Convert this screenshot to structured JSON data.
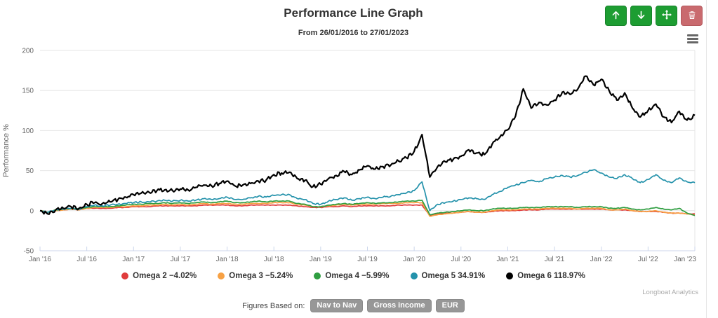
{
  "header": {
    "title": "Performance Line Graph",
    "subtitle": "From 26/01/2016 to 27/01/2023",
    "toolbar": [
      {
        "name": "move-up",
        "icon": "arrow-up-icon",
        "style": "green"
      },
      {
        "name": "move-down",
        "icon": "arrow-down-icon",
        "style": "green"
      },
      {
        "name": "drag-move",
        "icon": "move-icon",
        "style": "green"
      },
      {
        "name": "delete",
        "icon": "trash-icon",
        "style": "red"
      }
    ],
    "menu_icon": "hamburger-icon"
  },
  "chart_data": {
    "type": "line",
    "title": "Performance Line Graph",
    "subtitle": "From 26/01/2016 to 27/01/2023",
    "xlabel": "",
    "ylabel": "Performance %",
    "ylim": [
      -50,
      200
    ],
    "yticks": [
      -50,
      0,
      50,
      100,
      150,
      200
    ],
    "x_unit": "months since Jan 2016 (0..84)",
    "xtick_months": [
      0,
      6,
      12,
      18,
      24,
      30,
      36,
      42,
      48,
      54,
      60,
      66,
      72,
      78,
      84
    ],
    "xtick_labels": [
      "Jan '16",
      "Jul '16",
      "Jan '17",
      "Jul '17",
      "Jan '18",
      "Jul '18",
      "Jan '19",
      "Jul '19",
      "Jan '20",
      "Jul '20",
      "Jan '21",
      "Jul '21",
      "Jan '22",
      "Jul '22",
      "Jan '23"
    ],
    "grid": "horizontal",
    "legend_position": "bottom",
    "series": [
      {
        "name": "Omega 2",
        "final_value": -4.02,
        "legend_label": "Omega 2 −4.02%",
        "color": "#e03c3c",
        "values": [
          0,
          -2,
          0,
          1,
          2,
          1,
          3,
          3,
          3,
          3,
          4,
          4,
          5,
          5,
          5,
          6,
          6,
          6,
          6,
          6,
          6,
          7,
          7,
          7,
          7,
          6,
          6,
          7,
          7,
          7,
          7,
          7,
          7,
          6,
          5,
          4,
          4,
          5,
          5,
          6,
          5,
          6,
          6,
          6,
          6,
          6,
          7,
          7,
          7,
          7,
          -6,
          -4,
          -3,
          -3,
          -2,
          -1,
          -2,
          -2,
          -1,
          0,
          0,
          0,
          1,
          1,
          1,
          2,
          2,
          2,
          2,
          2,
          2,
          2,
          2,
          1,
          1,
          1,
          0,
          -1,
          -1,
          -1,
          -2,
          -3,
          -3,
          -4,
          -4.02
        ]
      },
      {
        "name": "Omega 3",
        "final_value": -5.24,
        "legend_label": "Omega 3 −5.24%",
        "color": "#f7a144",
        "values": [
          0,
          -2,
          0,
          1,
          2,
          1,
          3,
          4,
          4,
          4,
          5,
          5,
          6,
          6,
          7,
          7,
          8,
          7,
          8,
          7,
          8,
          9,
          8,
          9,
          9,
          8,
          8,
          9,
          9,
          9,
          10,
          10,
          10,
          8,
          7,
          5,
          5,
          6,
          7,
          8,
          7,
          8,
          8,
          8,
          9,
          9,
          9,
          10,
          10,
          10,
          -7,
          -5,
          -4,
          -3,
          -2,
          -1,
          -2,
          -2,
          0,
          1,
          1,
          1,
          2,
          2,
          2,
          3,
          3,
          3,
          3,
          2,
          3,
          3,
          3,
          1,
          1,
          2,
          0,
          -1,
          -1,
          0,
          -2,
          -3,
          -3,
          -4,
          -5.24
        ]
      },
      {
        "name": "Omega 4",
        "final_value": -5.99,
        "legend_label": "Omega 4 −5.99%",
        "color": "#2f9e41",
        "values": [
          0,
          -2,
          1,
          2,
          3,
          2,
          4,
          5,
          5,
          5,
          6,
          7,
          8,
          8,
          9,
          9,
          10,
          9,
          10,
          9,
          10,
          11,
          10,
          11,
          12,
          10,
          10,
          11,
          12,
          11,
          12,
          12,
          12,
          9,
          8,
          5,
          5,
          7,
          8,
          9,
          8,
          9,
          10,
          9,
          10,
          10,
          11,
          12,
          12,
          13,
          -5,
          -3,
          -2,
          -1,
          0,
          1,
          0,
          0,
          2,
          3,
          3,
          3,
          4,
          4,
          4,
          5,
          5,
          5,
          5,
          4,
          5,
          5,
          5,
          3,
          3,
          4,
          2,
          1,
          2,
          4,
          2,
          1,
          3,
          -3,
          -5.99
        ]
      },
      {
        "name": "Omega 5",
        "final_value": 34.91,
        "legend_label": "Omega 5 34.91%",
        "color": "#2492ab",
        "values": [
          0,
          -2,
          1,
          2,
          3,
          2,
          5,
          7,
          6,
          7,
          8,
          9,
          10,
          11,
          11,
          12,
          13,
          12,
          13,
          12,
          13,
          15,
          14,
          15,
          17,
          14,
          14,
          16,
          18,
          17,
          19,
          20,
          20,
          15,
          14,
          9,
          8,
          12,
          14,
          16,
          13,
          15,
          17,
          15,
          17,
          18,
          20,
          22,
          25,
          36,
          0,
          8,
          10,
          12,
          14,
          16,
          15,
          14,
          20,
          24,
          29,
          32,
          35,
          38,
          36,
          40,
          42,
          44,
          42,
          44,
          48,
          51,
          47,
          42,
          40,
          45,
          40,
          35,
          39,
          45,
          38,
          35,
          41,
          36,
          34.91
        ]
      },
      {
        "name": "Omega 6",
        "final_value": 118.97,
        "legend_label": "Omega 6 118.97%",
        "color": "#000000",
        "values": [
          0,
          -4,
          1,
          3,
          5,
          3,
          8,
          10,
          9,
          11,
          14,
          17,
          20,
          22,
          23,
          25,
          26,
          25,
          27,
          26,
          29,
          32,
          31,
          34,
          37,
          31,
          32,
          34,
          37,
          38,
          45,
          47,
          48,
          40,
          38,
          30,
          33,
          40,
          44,
          49,
          45,
          51,
          56,
          52,
          55,
          57,
          62,
          66,
          74,
          95,
          42,
          55,
          61,
          64,
          68,
          76,
          72,
          70,
          83,
          92,
          101,
          118,
          152,
          128,
          135,
          132,
          138,
          148,
          145,
          152,
          168,
          157,
          164,
          150,
          138,
          147,
          128,
          117,
          125,
          133,
          117,
          110,
          124,
          113,
          118.97
        ]
      }
    ]
  },
  "watermark": "Longboat Analytics",
  "footer": {
    "label": "Figures Based on:",
    "badges": [
      "Nav to Nav",
      "Gross income",
      "EUR"
    ]
  }
}
